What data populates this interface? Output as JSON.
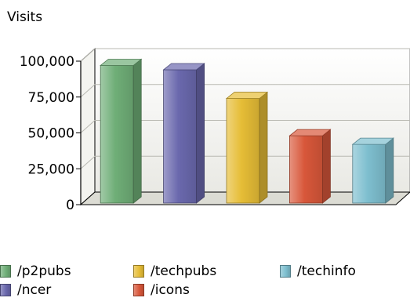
{
  "chart_data": {
    "type": "bar",
    "title": "",
    "xlabel": "",
    "ylabel": "Visits",
    "ylim": [
      0,
      100000
    ],
    "yticks": [
      "0",
      "25,000",
      "50,000",
      "75,000",
      "100,000"
    ],
    "categories": [
      "/p2pubs",
      "/ncer",
      "/techpubs",
      "/icons",
      "/techinfo"
    ],
    "values": [
      97000,
      94000,
      74000,
      48000,
      42000
    ],
    "colors": [
      "#6fae77",
      "#6a68ad",
      "#e6bd36",
      "#d8573a",
      "#7ebfcf"
    ],
    "grid": true,
    "legend_position": "bottom",
    "three_d": true
  }
}
